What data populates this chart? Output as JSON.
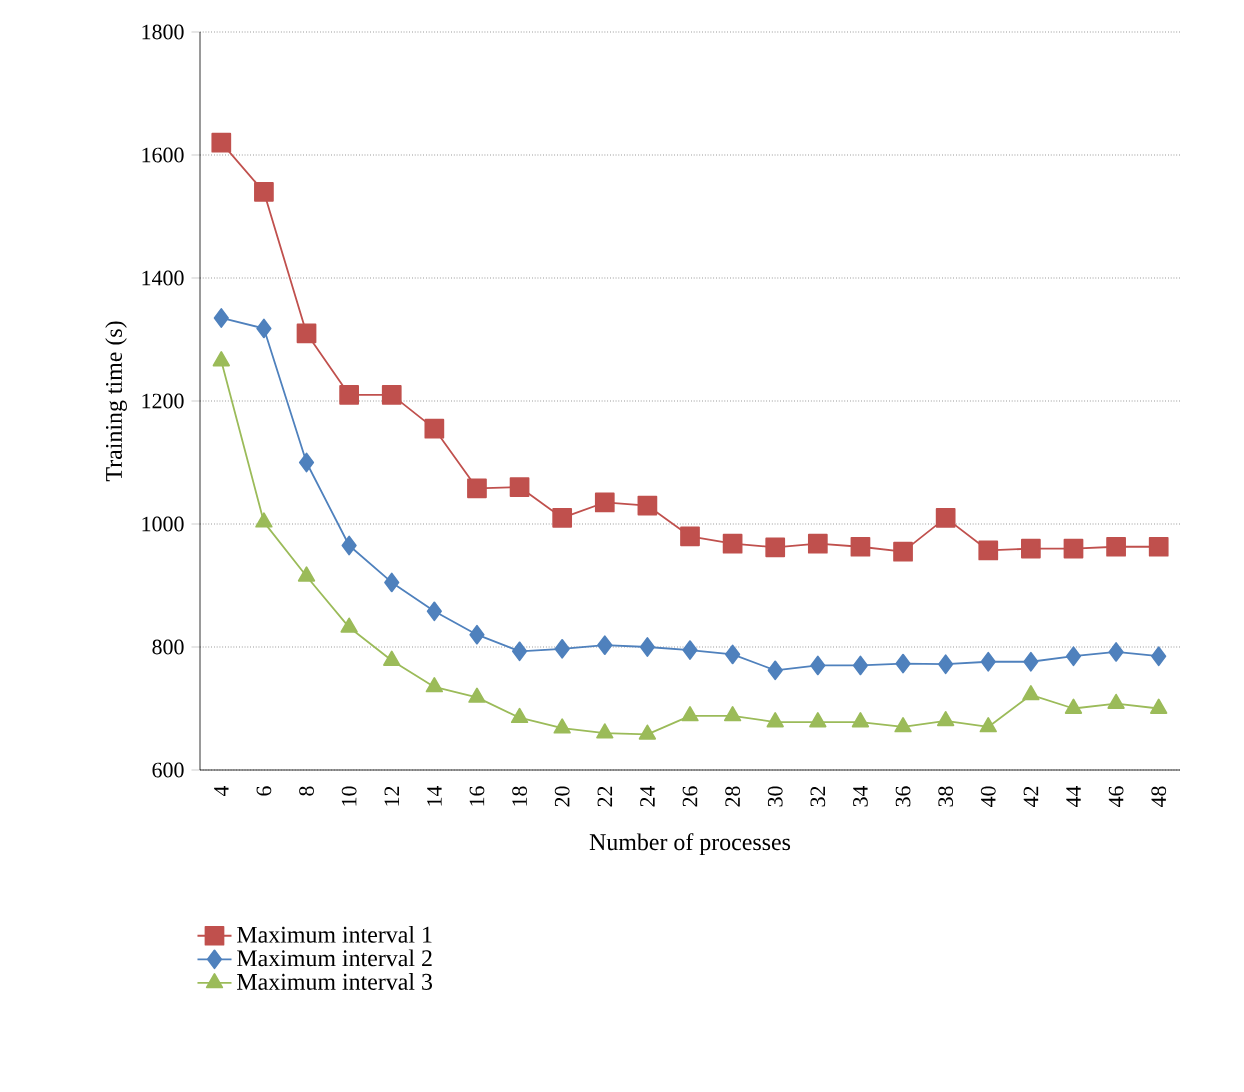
{
  "chart_data": {
    "type": "line",
    "xlabel": "Number of processes",
    "ylabel": "Training time (s)",
    "categories": [
      "4",
      "6",
      "8",
      "10",
      "12",
      "14",
      "16",
      "18",
      "20",
      "22",
      "24",
      "26",
      "28",
      "30",
      "32",
      "34",
      "36",
      "38",
      "40",
      "42",
      "44",
      "46",
      "48"
    ],
    "ylim": [
      600,
      1800
    ],
    "yticks": [
      600,
      800,
      1000,
      1200,
      1400,
      1600,
      1800
    ],
    "grid": "y",
    "legend": "bottom",
    "series": [
      {
        "name": "Maximum interval 1",
        "color": "#c0504d",
        "marker": "square",
        "values": [
          1620,
          1540,
          1310,
          1210,
          1210,
          1155,
          1058,
          1060,
          1010,
          1035,
          1030,
          980,
          968,
          962,
          968,
          963,
          955,
          1010,
          957,
          960,
          960,
          963,
          963
        ]
      },
      {
        "name": "Maximum interval 2",
        "color": "#4f81bd",
        "marker": "diamond",
        "values": [
          1335,
          1318,
          1100,
          965,
          905,
          858,
          820,
          793,
          797,
          803,
          800,
          795,
          788,
          762,
          770,
          770,
          773,
          772,
          776,
          776,
          785,
          792,
          785
        ]
      },
      {
        "name": "Maximum interval 3",
        "color": "#9bbb59",
        "marker": "triangle",
        "values": [
          1265,
          1003,
          915,
          832,
          778,
          735,
          718,
          685,
          668,
          660,
          658,
          688,
          688,
          678,
          678,
          678,
          670,
          680,
          670,
          722,
          700,
          708,
          700
        ]
      }
    ]
  }
}
